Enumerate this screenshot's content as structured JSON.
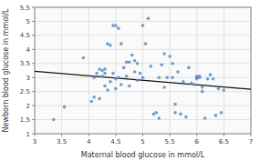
{
  "chart_data": {
    "type": "scatter",
    "xlabel": "Maternal blood glucose in mmol/L",
    "ylabel": "Newborn blood glucose in mmol/L",
    "xlim": [
      3,
      7
    ],
    "ylim": [
      1,
      5.5
    ],
    "xticks": [
      3,
      3.5,
      4,
      4.5,
      5,
      5.5,
      6,
      6.5,
      7
    ],
    "yticks": [
      1,
      1.5,
      2,
      2.5,
      3,
      3.5,
      4,
      4.5,
      5,
      5.5
    ],
    "grid": true,
    "series": [
      {
        "type": "scatter",
        "color": "#5b8cc8",
        "x": [
          3.35,
          3.55,
          3.9,
          4.05,
          4.1,
          4.1,
          4.15,
          4.2,
          4.2,
          4.25,
          4.25,
          4.3,
          4.3,
          4.3,
          4.35,
          4.35,
          4.4,
          4.4,
          4.45,
          4.45,
          4.5,
          4.5,
          4.5,
          4.55,
          4.55,
          4.6,
          4.6,
          4.65,
          4.7,
          4.7,
          4.75,
          4.75,
          4.8,
          4.85,
          4.85,
          4.9,
          4.9,
          4.95,
          5.0,
          5.0,
          5.05,
          5.1,
          5.15,
          5.2,
          5.25,
          5.3,
          5.3,
          5.35,
          5.4,
          5.4,
          5.45,
          5.5,
          5.55,
          5.55,
          5.6,
          5.6,
          5.65,
          5.7,
          5.75,
          5.8,
          5.85,
          5.9,
          5.95,
          6.0,
          6.0,
          6.0,
          6.05,
          6.05,
          6.1,
          6.1,
          6.15,
          6.2,
          6.25,
          6.3,
          6.35,
          6.4,
          6.45,
          6.5
        ],
        "values": [
          1.5,
          1.95,
          3.7,
          2.15,
          2.3,
          3.0,
          3.15,
          2.25,
          3.3,
          3.05,
          3.25,
          2.7,
          3.15,
          3.3,
          2.55,
          4.2,
          2.85,
          4.15,
          3.15,
          4.85,
          2.6,
          2.95,
          4.85,
          3.0,
          4.75,
          2.75,
          4.2,
          3.35,
          3.05,
          3.55,
          2.7,
          3.55,
          3.8,
          3.2,
          3.6,
          2.9,
          3.5,
          3.15,
          3.0,
          4.85,
          4.2,
          5.1,
          3.4,
          1.7,
          1.75,
          1.55,
          3.0,
          3.45,
          2.65,
          3.85,
          3.0,
          3.75,
          3.0,
          3.5,
          1.75,
          2.05,
          3.2,
          1.7,
          2.85,
          1.6,
          3.35,
          2.8,
          2.75,
          2.95,
          3.0,
          3.05,
          3.0,
          3.05,
          2.5,
          2.65,
          1.55,
          2.95,
          3.1,
          2.95,
          1.65,
          2.6,
          1.75,
          2.55
        ]
      },
      {
        "type": "line",
        "color": "#111111",
        "x": [
          3.0,
          7.0
        ],
        "values": [
          3.22,
          2.58
        ]
      }
    ]
  }
}
